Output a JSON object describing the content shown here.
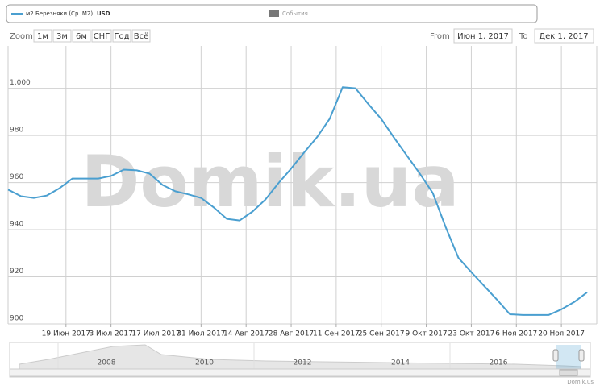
{
  "chart_data": {
    "type": "line",
    "legend_label": "м2 Березняки (Ср. М2)",
    "legend_unit": "USD",
    "events_label": "События",
    "watermark": "Domik.ua",
    "x": [
      "2017-06-01",
      "2017-06-05",
      "2017-06-09",
      "2017-06-13",
      "2017-06-17",
      "2017-06-21",
      "2017-06-25",
      "2017-06-29",
      "2017-07-03",
      "2017-07-07",
      "2017-07-11",
      "2017-07-15",
      "2017-07-19",
      "2017-07-23",
      "2017-07-27",
      "2017-07-31",
      "2017-08-04",
      "2017-08-08",
      "2017-08-12",
      "2017-08-16",
      "2017-08-20",
      "2017-08-24",
      "2017-08-28",
      "2017-09-01",
      "2017-09-05",
      "2017-09-09",
      "2017-09-13",
      "2017-09-17",
      "2017-09-21",
      "2017-09-25",
      "2017-09-29",
      "2017-10-03",
      "2017-10-07",
      "2017-10-11",
      "2017-10-15",
      "2017-10-19",
      "2017-10-23",
      "2017-10-27",
      "2017-10-31",
      "2017-11-04",
      "2017-11-08",
      "2017-11-12",
      "2017-11-16",
      "2017-11-20",
      "2017-11-24",
      "2017-11-28"
    ],
    "series": [
      {
        "color": "#4a9fd0",
        "values": [
          957,
          954.2,
          953.5,
          954.5,
          957.6,
          961.7,
          961.7,
          961.7,
          962.8,
          965.5,
          965.2,
          963.8,
          959,
          956.3,
          955,
          953.5,
          949.4,
          944.6,
          943.9,
          947.7,
          952.8,
          959.7,
          965.9,
          972.7,
          979.2,
          987.1,
          1000.5,
          1000,
          993.3,
          987,
          979,
          971.4,
          963.8,
          955.6,
          941.2,
          928,
          922,
          916.1,
          910.3,
          904.1,
          903.8,
          903.8,
          903.8,
          906.2,
          909.3,
          913.4
        ]
      }
    ],
    "xlim": [
      "2017-06-01",
      "2017-12-01"
    ],
    "xticks": [
      {
        "value": "2017-06-19",
        "label": "19 Июн 2017"
      },
      {
        "value": "2017-07-03",
        "label": "3 Июл 2017"
      },
      {
        "value": "2017-07-17",
        "label": "17 Июл 2017"
      },
      {
        "value": "2017-07-31",
        "label": "31 Июл 2017"
      },
      {
        "value": "2017-08-14",
        "label": "14 Авг 2017"
      },
      {
        "value": "2017-08-28",
        "label": "28 Авг 2017"
      },
      {
        "value": "2017-09-11",
        "label": "11 Сен 2017"
      },
      {
        "value": "2017-09-25",
        "label": "25 Сен 2017"
      },
      {
        "value": "2017-10-09",
        "label": "9 Окт 2017"
      },
      {
        "value": "2017-10-23",
        "label": "23 Окт 2017"
      },
      {
        "value": "2017-11-06",
        "label": "6 Ноя 2017"
      },
      {
        "value": "2017-11-20",
        "label": "20 Ноя 2017"
      }
    ],
    "ylim": [
      900,
      1018
    ],
    "yticks": [
      900,
      920,
      940,
      960,
      980,
      {
        "value": 1000,
        "label": "1,000"
      }
    ],
    "grid": true
  },
  "controls": {
    "zoom_label": "Zoom",
    "zoom_buttons": [
      "1м",
      "3м",
      "6м",
      "СНГ",
      "Год",
      "Всё"
    ],
    "from_label": "From",
    "from_value": "Июн 1, 2017",
    "to_label": "To",
    "to_value": "Дек 1, 2017"
  },
  "navigator": {
    "years": [
      "2008",
      "2010",
      "2012",
      "2014",
      "2016"
    ],
    "credit": "Domik.us"
  }
}
